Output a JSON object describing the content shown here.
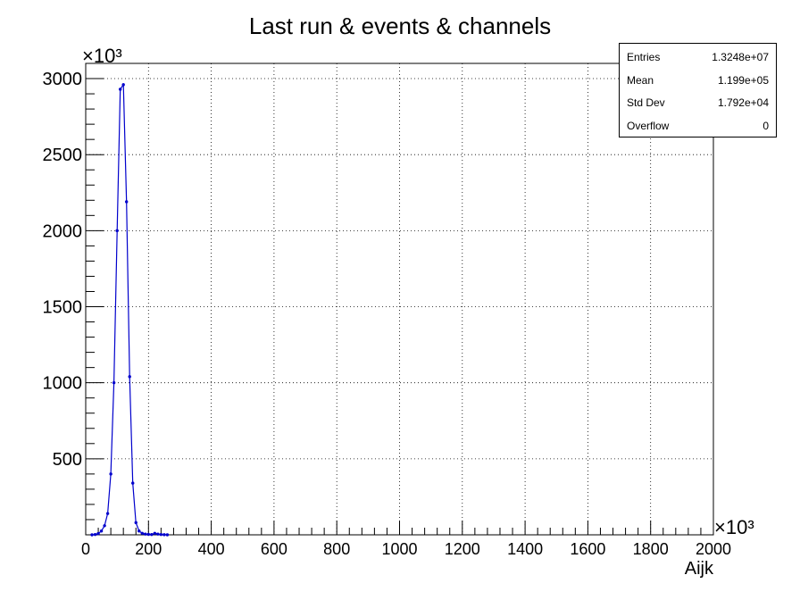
{
  "chart_data": {
    "type": "line",
    "title": "Last run & events & channels",
    "xlabel": "Aijk",
    "ylabel": "",
    "x_multiplier_label": "×10³",
    "y_multiplier_label": "×10³",
    "xlim": [
      0,
      2000
    ],
    "ylim": [
      0,
      3100
    ],
    "x_ticks": [
      0,
      200,
      400,
      600,
      800,
      1000,
      1200,
      1400,
      1600,
      1800,
      2000
    ],
    "y_ticks": [
      500,
      1000,
      1500,
      2000,
      2500,
      3000
    ],
    "x_tick_labels": [
      "0",
      "200",
      "400",
      "600",
      "800",
      "1000",
      "1200",
      "1400",
      "1600",
      "1800",
      "2000"
    ],
    "y_tick_labels": [
      "500",
      "1000",
      "1500",
      "2000",
      "2500",
      "3000"
    ],
    "grid": true,
    "series": [
      {
        "color": "#0000cc",
        "x": [
          20,
          30,
          40,
          50,
          60,
          70,
          80,
          90,
          100,
          110,
          120,
          130,
          140,
          150,
          160,
          170,
          180,
          190,
          200,
          210,
          220,
          230,
          240,
          250,
          260
        ],
        "y": [
          0,
          2,
          8,
          25,
          60,
          140,
          400,
          1000,
          2000,
          2930,
          2960,
          2190,
          1040,
          340,
          80,
          25,
          10,
          5,
          3,
          2,
          10,
          5,
          2,
          1,
          0
        ]
      }
    ]
  },
  "stats": {
    "rows": [
      {
        "label": "Entries",
        "value": "1.3248e+07"
      },
      {
        "label": "Mean",
        "value": "1.199e+05"
      },
      {
        "label": "Std Dev",
        "value": "1.792e+04"
      },
      {
        "label": "Overflow",
        "value": "0"
      }
    ]
  }
}
